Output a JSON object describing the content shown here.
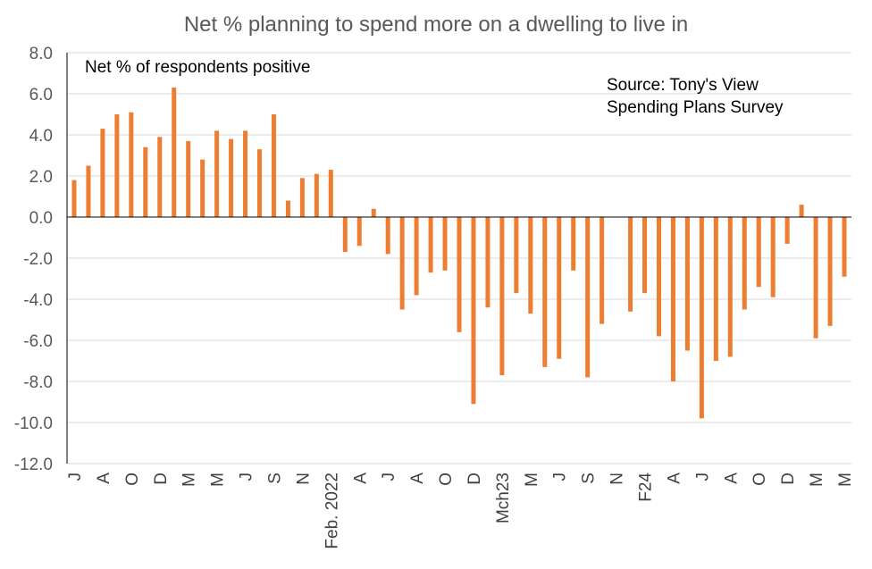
{
  "chart_data": {
    "type": "bar",
    "title": "Net % planning to spend more on a dwelling to live in",
    "ylabel": "Net % of respondents positive",
    "source_line1": "Source: Tony's View",
    "source_line2": "Spending Plans Survey",
    "ylim": [
      -12,
      8
    ],
    "yticks": [
      "8.0",
      "6.0",
      "4.0",
      "2.0",
      "0.0",
      "-2.0",
      "-4.0",
      "-6.0",
      "-8.0",
      "-10.0",
      "-12.0"
    ],
    "ytick_values": [
      8,
      6,
      4,
      2,
      0,
      -2,
      -4,
      -6,
      -8,
      -10,
      -12
    ],
    "categories": [
      "J",
      "",
      "A",
      "",
      "O",
      "",
      "D",
      "",
      "M",
      "",
      "M",
      "",
      "J",
      "",
      "S",
      "",
      "N",
      "",
      "Feb. 2022",
      "",
      "A",
      "",
      "J",
      "",
      "A",
      "",
      "O",
      "",
      "D",
      "",
      "Mch23",
      "",
      "M",
      "",
      "J",
      "",
      "S",
      "",
      "N",
      "",
      "F24",
      "",
      "A",
      "",
      "J",
      "",
      "A",
      "",
      "O",
      "",
      "D",
      "",
      "M",
      "",
      "M"
    ],
    "values": [
      1.8,
      2.5,
      4.3,
      5.0,
      5.1,
      3.4,
      3.9,
      6.3,
      3.7,
      2.8,
      4.2,
      3.8,
      4.2,
      3.3,
      5.0,
      0.8,
      1.9,
      2.1,
      2.3,
      -1.7,
      -1.4,
      0.4,
      -1.8,
      -4.5,
      -3.8,
      -2.7,
      -2.6,
      -5.6,
      -9.1,
      -4.4,
      -7.7,
      -3.7,
      -4.7,
      -7.3,
      -6.9,
      -2.6,
      -7.8,
      -5.2,
      null,
      -4.6,
      -3.7,
      -5.8,
      -8.0,
      -6.5,
      -9.8,
      -7.0,
      -6.8,
      -4.5,
      -3.4,
      -3.9,
      -1.3,
      0.6,
      -5.9,
      -5.3,
      -2.9
    ],
    "bar_color": "#ED7D31",
    "grid": true
  }
}
